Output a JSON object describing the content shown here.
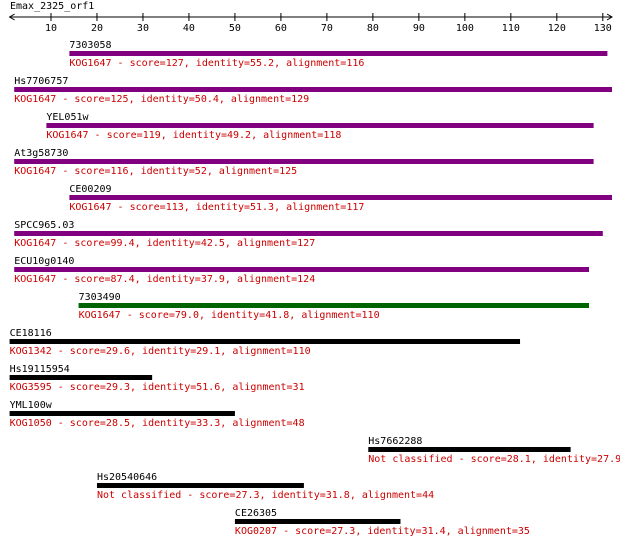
{
  "chart_data": {
    "type": "alignment",
    "title": "Emax_2325_orf1",
    "xlim": [
      1,
      132
    ],
    "xticks": [
      10,
      20,
      30,
      40,
      50,
      60,
      70,
      80,
      90,
      100,
      110,
      120,
      130
    ],
    "hits": [
      {
        "name": "7303058",
        "description": "KOG1647 - score=127, identity=55.2, alignment=116",
        "start": 14,
        "end": 131,
        "color": "#800080"
      },
      {
        "name": "Hs7706757",
        "description": "KOG1647 - score=125, identity=50.4, alignment=129",
        "start": 2,
        "end": 132,
        "color": "#800080"
      },
      {
        "name": "YEL051w",
        "description": "KOG1647 - score=119, identity=49.2, alignment=118",
        "start": 9,
        "end": 128,
        "color": "#800080"
      },
      {
        "name": "At3g58730",
        "description": "KOG1647 - score=116, identity=52, alignment=125",
        "start": 2,
        "end": 128,
        "color": "#800080"
      },
      {
        "name": "CE00209",
        "description": "KOG1647 - score=113, identity=51.3, alignment=117",
        "start": 14,
        "end": 132,
        "color": "#800080"
      },
      {
        "name": "SPCC965.03",
        "description": "KOG1647 - score=99.4, identity=42.5, alignment=127",
        "start": 2,
        "end": 130,
        "color": "#800080"
      },
      {
        "name": "ECU10g0140",
        "description": "KOG1647 - score=87.4, identity=37.9, alignment=124",
        "start": 2,
        "end": 127,
        "color": "#800080"
      },
      {
        "name": "7303490",
        "description": "KOG1647 - score=79.0, identity=41.8, alignment=110",
        "start": 16,
        "end": 127,
        "color": "#006400"
      },
      {
        "name": "CE18116",
        "description": "KOG1342 - score=29.6, identity=29.1, alignment=110",
        "start": 1,
        "end": 112,
        "color": "#000000"
      },
      {
        "name": "Hs19115954",
        "description": "KOG3595 - score=29.3, identity=51.6, alignment=31",
        "start": 1,
        "end": 32,
        "color": "#000000"
      },
      {
        "name": "YML100w",
        "description": "KOG1050 - score=28.5, identity=33.3, alignment=48",
        "start": 1,
        "end": 50,
        "color": "#000000"
      },
      {
        "name": "Hs7662288",
        "description": "Not classified - score=28.1, identity=27.9",
        "start": 79,
        "end": 123,
        "color": "#000000"
      },
      {
        "name": "Hs20540646",
        "description": "Not classified - score=27.3, identity=31.8, alignment=44",
        "start": 20,
        "end": 65,
        "color": "#000000"
      },
      {
        "name": "CE26305",
        "description": "KOG0207 - score=27.3, identity=31.4, alignment=35",
        "start": 50,
        "end": 86,
        "color": "#000000"
      }
    ]
  }
}
